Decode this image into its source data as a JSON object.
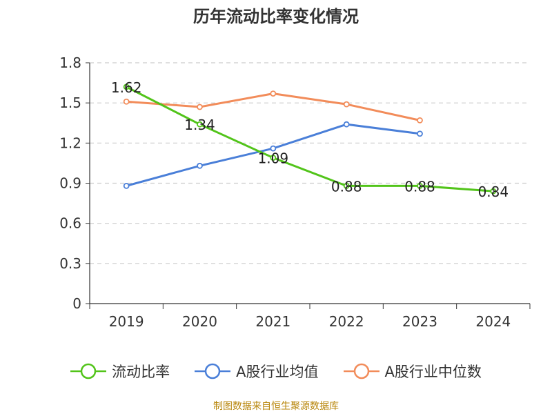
{
  "chart_data": {
    "type": "line",
    "title": "历年流动比率变化情况",
    "categories": [
      "2019",
      "2020",
      "2021",
      "2022",
      "2023",
      "2024"
    ],
    "ylim": [
      0,
      1.8
    ],
    "yticks": [
      "0",
      "0.3",
      "0.6",
      "0.9",
      "1.2",
      "1.5",
      "1.8"
    ],
    "grid": true,
    "legend_position": "bottom",
    "series": [
      {
        "name": "流动比率",
        "color": "#52c41a",
        "values": [
          1.62,
          1.34,
          1.09,
          0.88,
          0.88,
          0.84
        ],
        "labels": [
          "1.62",
          "1.34",
          "1.09",
          "0.88",
          "0.88",
          "0.84"
        ]
      },
      {
        "name": "A股行业均值",
        "color": "#4a7fd8",
        "values": [
          0.88,
          1.03,
          1.16,
          1.34,
          1.27,
          null
        ]
      },
      {
        "name": "A股行业中位数",
        "color": "#f28c5a",
        "values": [
          1.51,
          1.47,
          1.57,
          1.49,
          1.37,
          null
        ]
      }
    ]
  },
  "footer": {
    "source": "制图数据来自恒生聚源数据库"
  }
}
